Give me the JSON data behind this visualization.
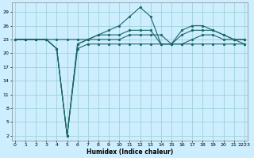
{
  "bg_color": "#cceeff",
  "grid_color": "#99cccc",
  "line_color": "#1a6666",
  "xlabel": "Humidex (Indice chaleur)",
  "yticks": [
    2,
    5,
    8,
    11,
    14,
    17,
    20,
    23,
    26,
    29
  ],
  "xtick_labels": [
    "0",
    "1",
    "2",
    "3",
    "4",
    "5",
    "6",
    "7",
    "8",
    "9",
    "10",
    "11",
    "12",
    "13",
    "14",
    "15",
    "16",
    "17",
    "18",
    "19",
    "20",
    "21",
    "2223"
  ],
  "xticks": [
    0,
    1,
    2,
    3,
    4,
    5,
    6,
    7,
    8,
    9,
    10,
    11,
    12,
    13,
    14,
    15,
    16,
    17,
    18,
    19,
    20,
    21,
    22
  ],
  "ylim": [
    1,
    31
  ],
  "xlim": [
    -0.3,
    22.3
  ],
  "lines": [
    [
      23,
      23,
      23,
      23,
      21,
      2,
      21,
      22,
      22,
      22,
      22,
      22,
      22,
      22,
      22,
      22,
      22,
      22,
      22,
      22,
      22,
      22,
      22
    ],
    [
      23,
      23,
      23,
      23,
      21,
      2,
      22,
      23,
      24,
      25,
      26,
      28,
      30,
      28,
      22,
      22,
      22,
      23,
      24,
      24,
      23,
      23,
      22
    ],
    [
      23,
      23,
      23,
      23,
      21,
      2,
      22,
      23,
      24,
      24,
      24,
      25,
      25,
      25,
      22,
      22,
      25,
      26,
      26,
      25,
      24,
      23,
      23
    ],
    [
      23,
      23,
      23,
      23,
      23,
      23,
      23,
      23,
      23,
      23,
      23,
      24,
      24,
      24,
      24,
      22,
      24,
      25,
      25,
      25,
      24,
      23,
      23
    ]
  ]
}
